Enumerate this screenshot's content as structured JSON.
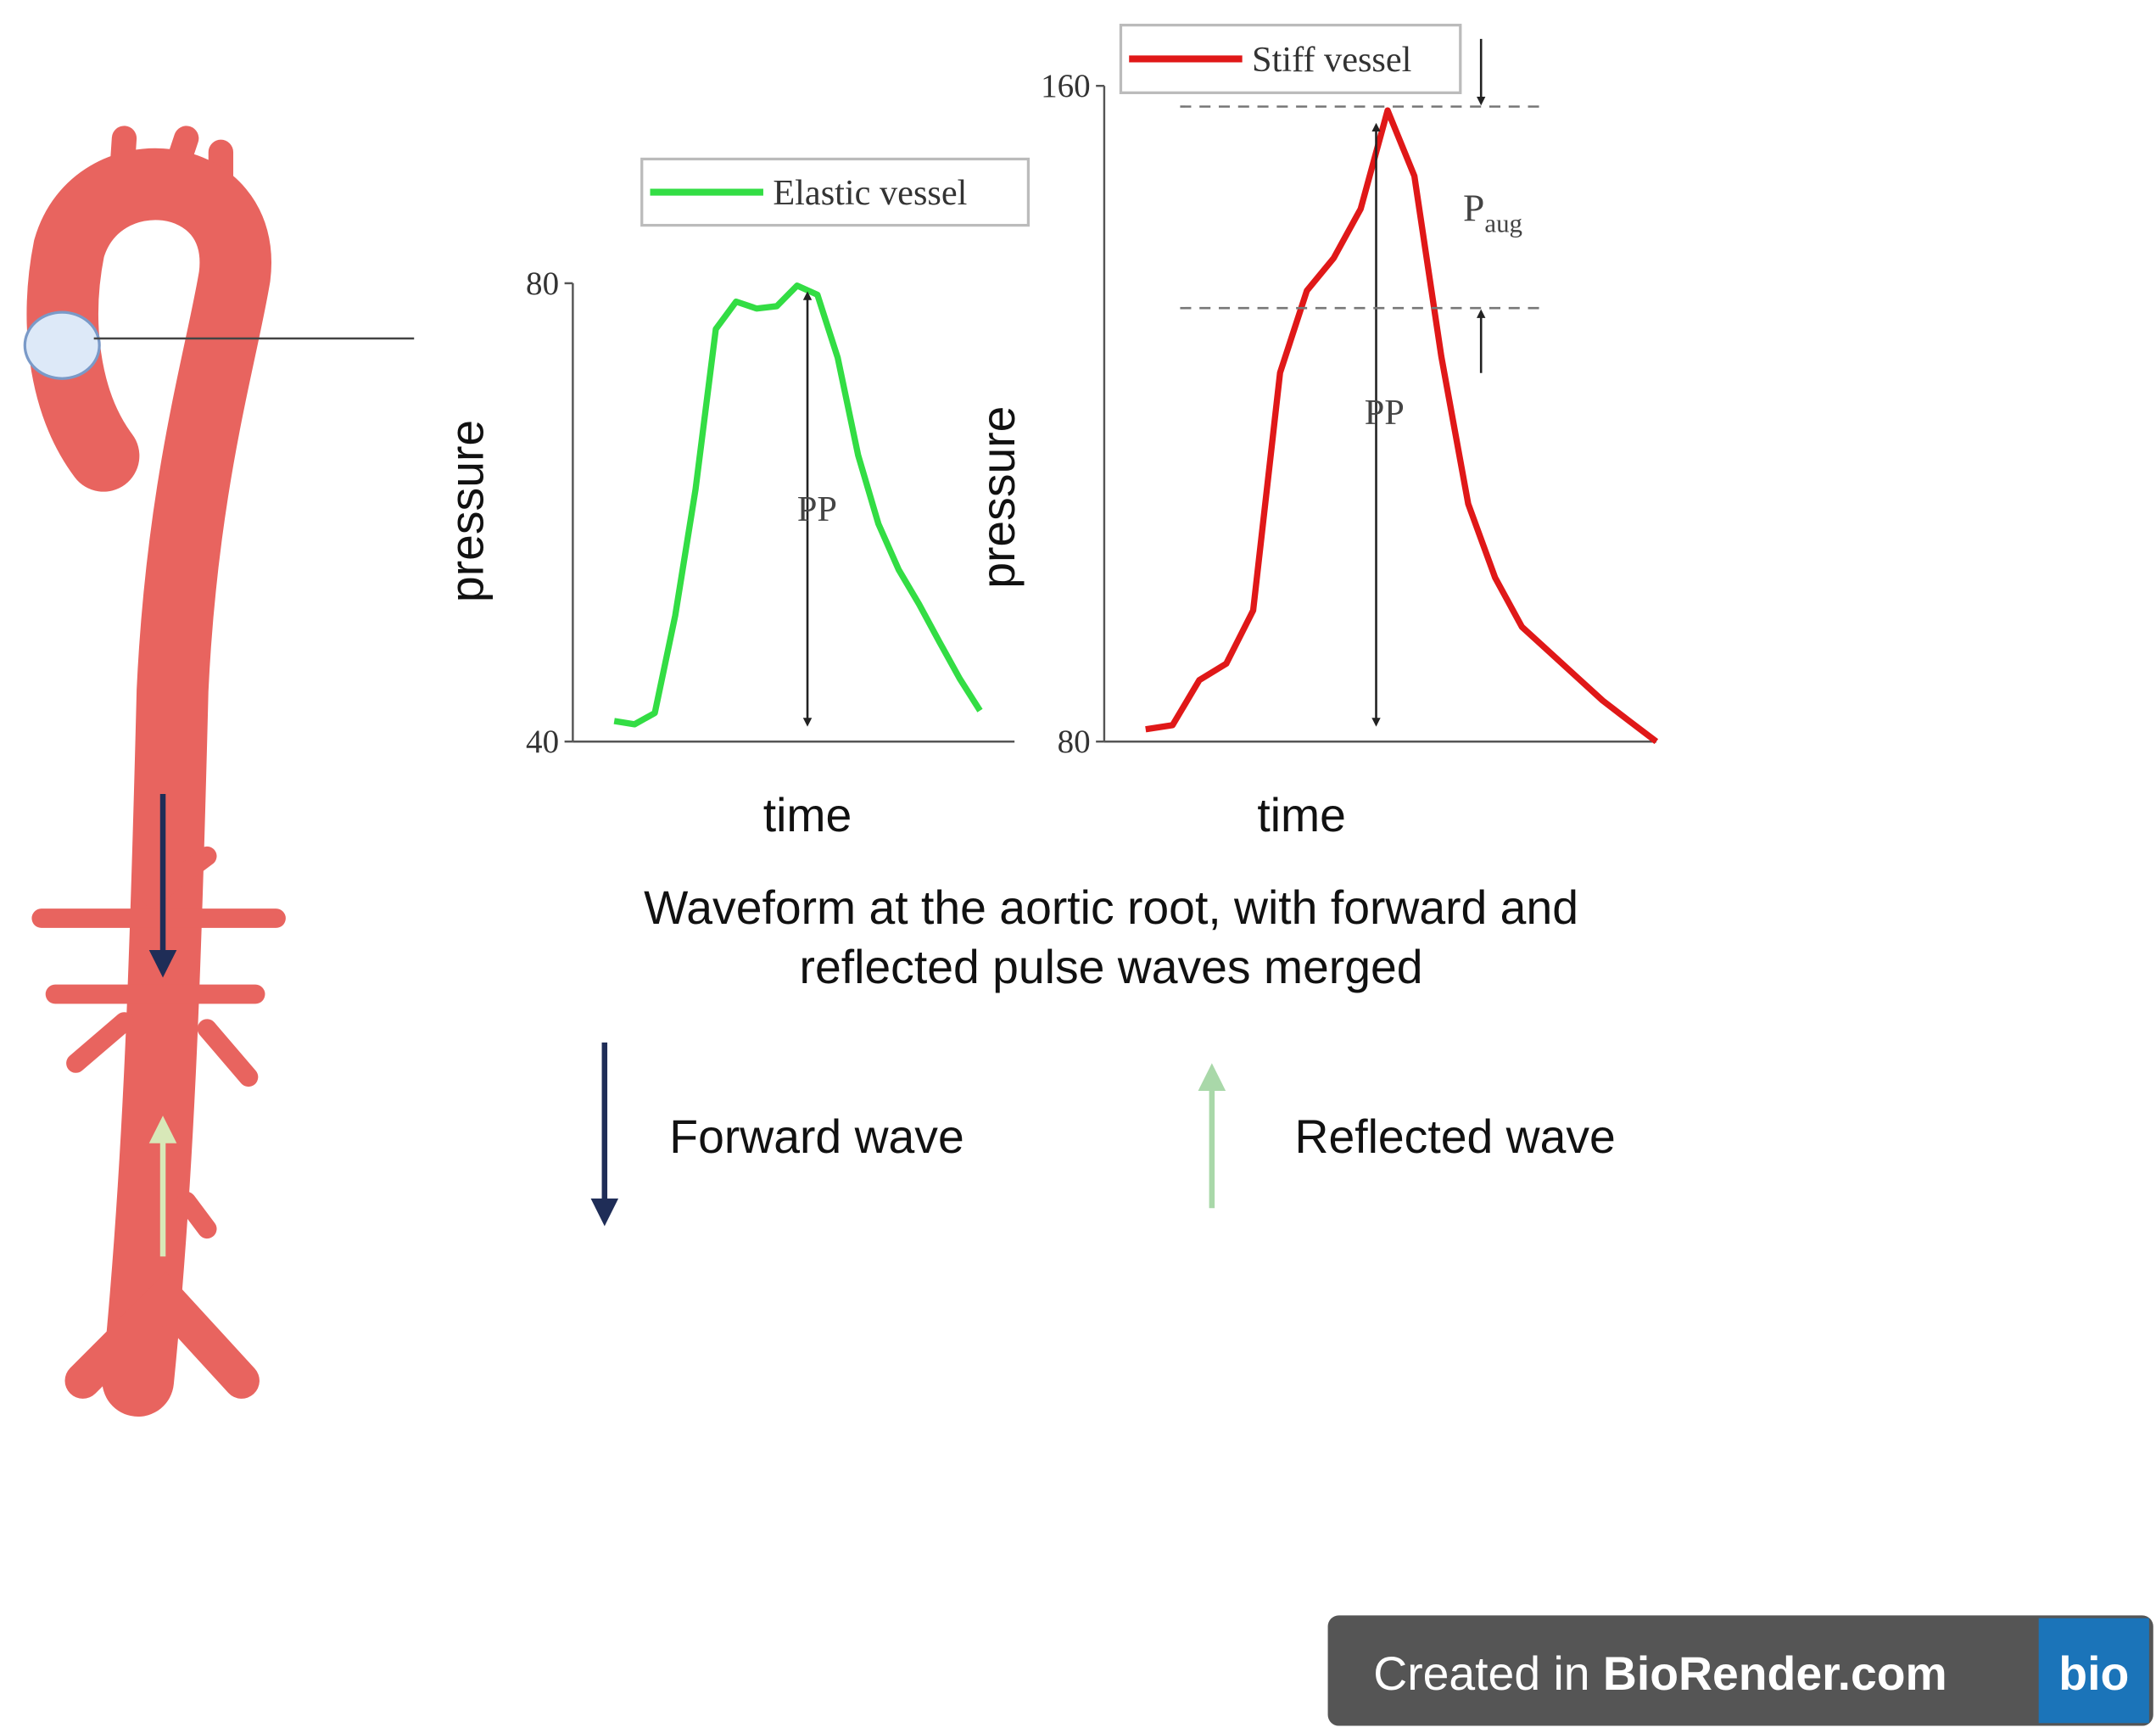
{
  "chart_data": [
    {
      "type": "line",
      "xlabel": "time",
      "ylabel": "pressure",
      "ylim": [
        40,
        80
      ],
      "yticks": [
        40,
        80
      ],
      "grid": false,
      "series": [
        {
          "name": "Elastic vessel",
          "color": "#33dd44",
          "values": [
            41.8,
            41.5,
            42.5,
            51,
            62,
            76,
            78.4,
            77.8,
            78,
            79.8,
            79,
            73.5,
            65,
            59,
            55,
            52,
            48.7,
            45.5,
            42.7
          ]
        }
      ],
      "pp_label": "PP"
    },
    {
      "type": "line",
      "xlabel": "time",
      "ylabel": "pressure",
      "ylim": [
        80,
        160
      ],
      "yticks": [
        80,
        160
      ],
      "grid": false,
      "series": [
        {
          "name": "Stiff vessel",
          "color": "#e01818",
          "values": [
            81.5,
            82,
            87.5,
            89.5,
            96,
            125,
            135,
            139,
            145,
            157,
            149,
            127,
            109,
            100,
            94,
            91,
            88,
            85,
            82.5,
            80
          ]
        }
      ],
      "pp_label": "PP",
      "aug_label": {
        "main": "P",
        "sub": "aug"
      }
    }
  ],
  "caption": [
    "Waveform at the aortic root, with forward and",
    "reflected pulse waves merged"
  ],
  "legend": [
    {
      "label": "Forward wave",
      "color": "#1f2d57"
    },
    {
      "label": "Reflected wave",
      "color": "#a9d8a9"
    }
  ],
  "badge": {
    "text": "Created in ",
    "brand": "BioRender.com",
    "logo": "bio"
  }
}
